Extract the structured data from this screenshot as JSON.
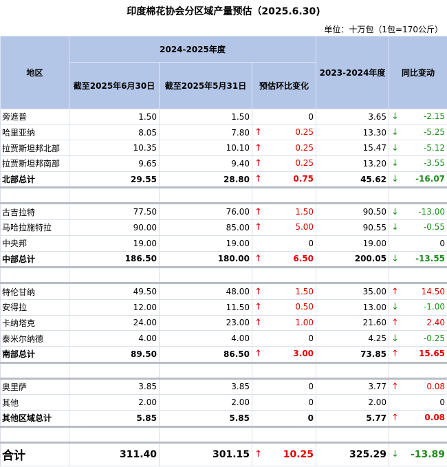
{
  "title": "印度棉花协会分区域产量预估（2025.6.30)",
  "unit": "单位：十万包（1包=170公斤）",
  "header": {
    "region": "地区",
    "season_current": "2024-2025年度",
    "col_jun": "截至2025年6月30日",
    "col_may": "截至2025年5月31日",
    "col_mom": "预估环比变化",
    "season_prev": "2023-2024年度",
    "yoy": "同比变动"
  },
  "colors": {
    "header_bg": "#b4c6e7",
    "up": "#e00000",
    "down": "#1e8c1e"
  },
  "groups": [
    {
      "rows": [
        {
          "region": "旁遮普",
          "jun": "1.50",
          "may": "1.50",
          "mom": "0",
          "mom_dir": "",
          "prev": "3.65",
          "yoy": "-2.15",
          "yoy_dir": "down"
        },
        {
          "region": "哈里亚纳",
          "jun": "8.05",
          "may": "7.80",
          "mom": "0.25",
          "mom_dir": "up",
          "prev": "13.30",
          "yoy": "-5.25",
          "yoy_dir": "down"
        },
        {
          "region": "拉贾斯坦邦北部",
          "jun": "10.35",
          "may": "10.10",
          "mom": "0.25",
          "mom_dir": "up",
          "prev": "15.47",
          "yoy": "-5.12",
          "yoy_dir": "down"
        },
        {
          "region": "拉贾斯坦邦南部",
          "jun": "9.65",
          "may": "9.40",
          "mom": "0.25",
          "mom_dir": "up",
          "prev": "13.20",
          "yoy": "-3.55",
          "yoy_dir": "down"
        }
      ],
      "total": {
        "region": "北部总计",
        "jun": "29.55",
        "may": "28.80",
        "mom": "0.75",
        "mom_dir": "up",
        "prev": "45.62",
        "yoy": "-16.07",
        "yoy_dir": "down"
      }
    },
    {
      "rows": [
        {
          "region": "古吉拉特",
          "jun": "77.50",
          "may": "76.00",
          "mom": "1.50",
          "mom_dir": "up",
          "prev": "90.50",
          "yoy": "-13.00",
          "yoy_dir": "down"
        },
        {
          "region": "马哈拉施特拉",
          "jun": "90.00",
          "may": "85.00",
          "mom": "5.00",
          "mom_dir": "up",
          "prev": "90.55",
          "yoy": "-0.55",
          "yoy_dir": "down"
        },
        {
          "region": "中央邦",
          "jun": "19.00",
          "may": "19.00",
          "mom": "0",
          "mom_dir": "",
          "prev": "19.00",
          "yoy": "0",
          "yoy_dir": ""
        }
      ],
      "total": {
        "region": "中部总计",
        "jun": "186.50",
        "may": "180.00",
        "mom": "6.50",
        "mom_dir": "up",
        "prev": "200.05",
        "yoy": "-13.55",
        "yoy_dir": "down"
      }
    },
    {
      "rows": [
        {
          "region": "特伦甘纳",
          "jun": "49.50",
          "may": "48.00",
          "mom": "1.50",
          "mom_dir": "up",
          "prev": "35.00",
          "yoy": "14.50",
          "yoy_dir": "up"
        },
        {
          "region": "安得拉",
          "jun": "12.00",
          "may": "11.50",
          "mom": "0.50",
          "mom_dir": "up",
          "prev": "13.00",
          "yoy": "-1.00",
          "yoy_dir": "down"
        },
        {
          "region": "卡纳塔克",
          "jun": "24.00",
          "may": "23.00",
          "mom": "1.00",
          "mom_dir": "up",
          "prev": "21.60",
          "yoy": "2.40",
          "yoy_dir": "up"
        },
        {
          "region": "泰米尔纳德",
          "jun": "4.00",
          "may": "4.00",
          "mom": "0",
          "mom_dir": "",
          "prev": "4.25",
          "yoy": "-0.25",
          "yoy_dir": "down"
        }
      ],
      "total": {
        "region": "南部总计",
        "jun": "89.50",
        "may": "86.50",
        "mom": "3.00",
        "mom_dir": "up",
        "prev": "73.85",
        "yoy": "15.65",
        "yoy_dir": "up"
      }
    },
    {
      "rows": [
        {
          "region": "奥里萨",
          "jun": "3.85",
          "may": "3.85",
          "mom": "0",
          "mom_dir": "",
          "prev": "3.77",
          "yoy": "0.08",
          "yoy_dir": "up"
        },
        {
          "region": "其他",
          "jun": "2.00",
          "may": "2.00",
          "mom": "0",
          "mom_dir": "",
          "prev": "2.00",
          "yoy": "0",
          "yoy_dir": ""
        }
      ],
      "total": {
        "region": "其他区域总计",
        "jun": "5.85",
        "may": "5.85",
        "mom": "0",
        "mom_dir": "",
        "prev": "5.77",
        "yoy": "0.08",
        "yoy_dir": "up"
      }
    }
  ],
  "grand": {
    "region": "合计",
    "jun": "311.40",
    "may": "301.15",
    "mom": "10.25",
    "mom_dir": "up",
    "prev": "325.29",
    "yoy": "-13.89",
    "yoy_dir": "down"
  }
}
